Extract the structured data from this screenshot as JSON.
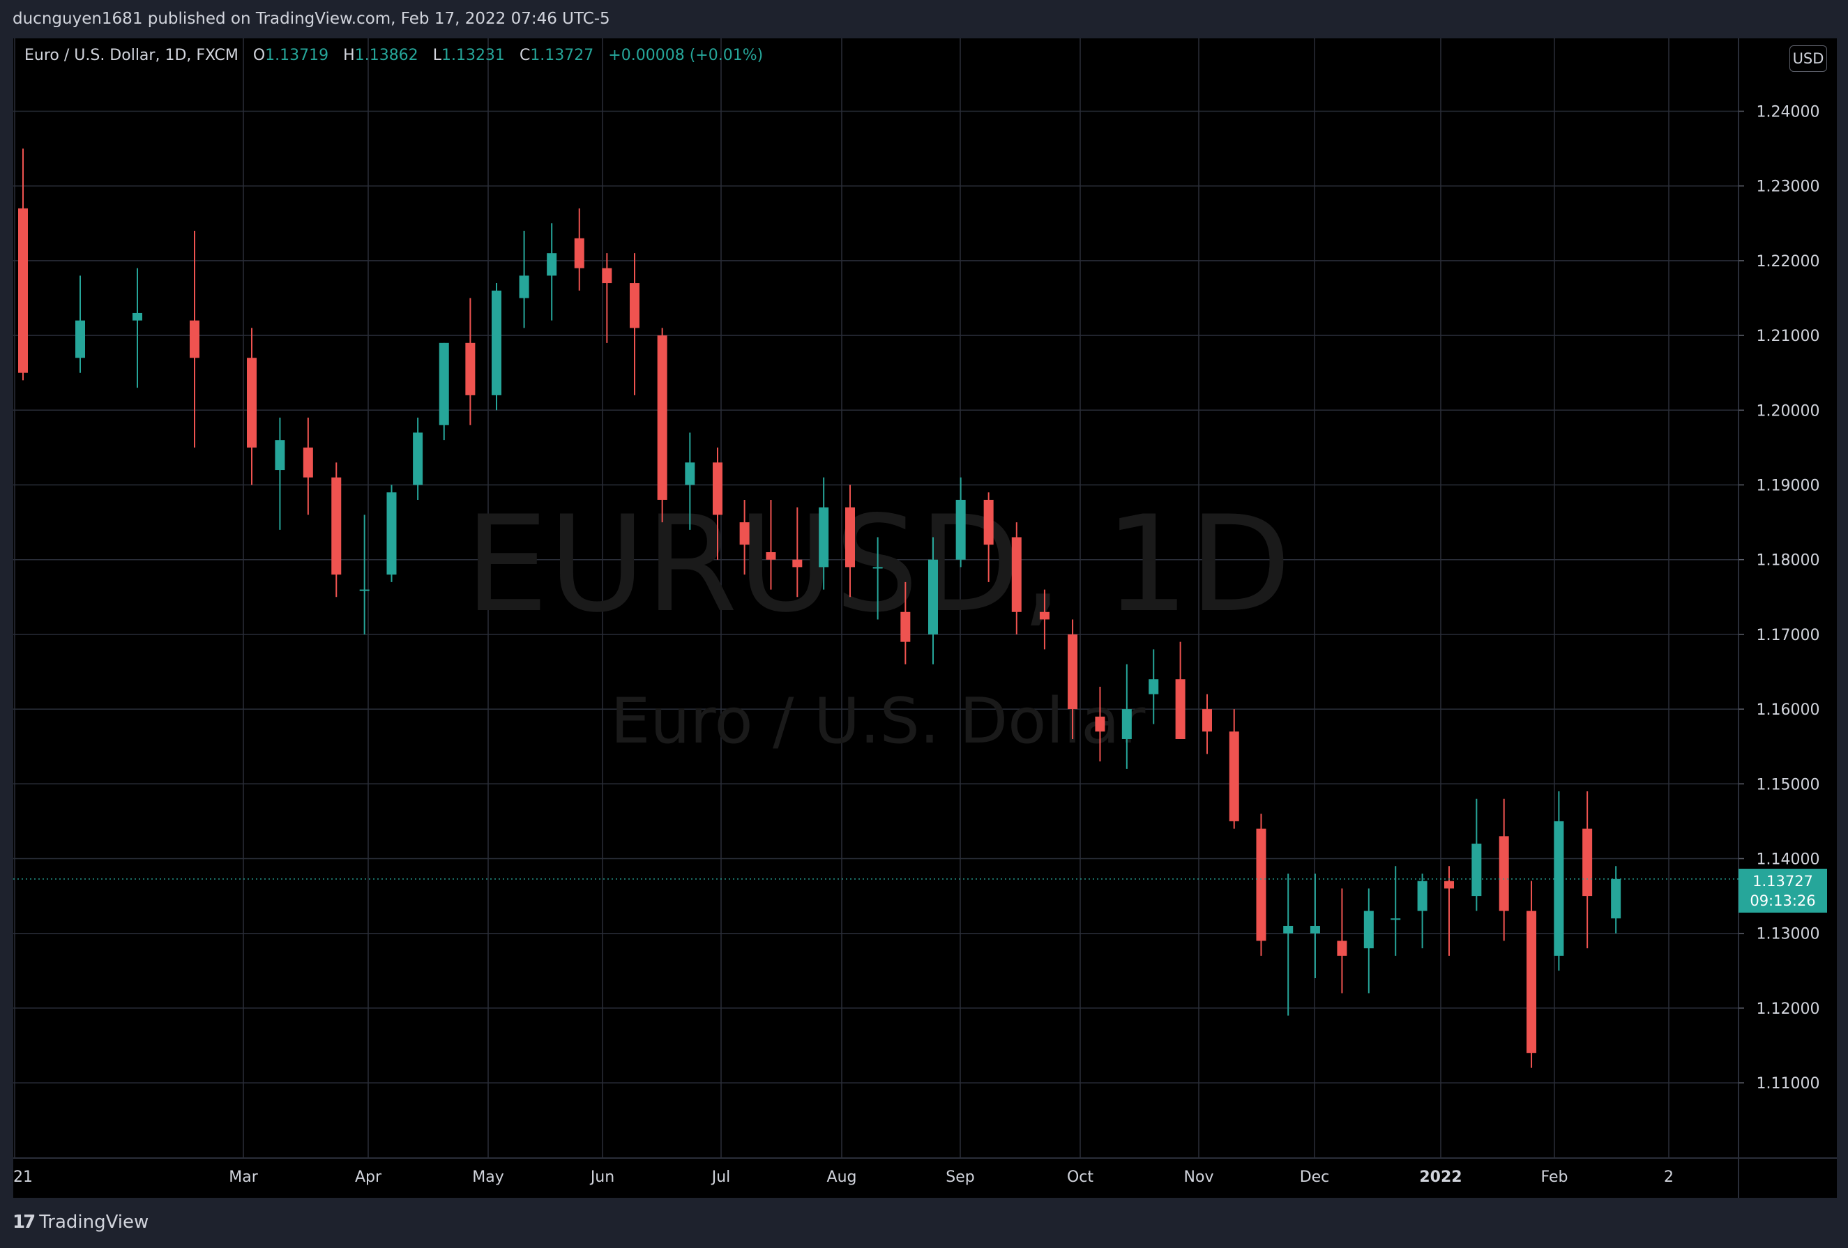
{
  "header": {
    "publisher_line": "ducnguyen1681 published on TradingView.com, Feb 17, 2022 07:46 UTC-5"
  },
  "legend": {
    "symbol": "Euro / U.S. Dollar, 1D, FXCM",
    "open_key": "O",
    "open": "1.13719",
    "high_key": "H",
    "high": "1.13862",
    "low_key": "L",
    "low": "1.13231",
    "close_key": "C",
    "close": "1.13727",
    "change": "+0.00008 (+0.01%)"
  },
  "currency_button": "USD",
  "watermark": {
    "ticker": "EURUSD, 1D",
    "name": "Euro / U.S. Dollar"
  },
  "last_price": {
    "value": "1.13727",
    "countdown": "09:13:26"
  },
  "footer": {
    "brand": "TradingView",
    "logo_icon": "tradingview-logo-icon"
  },
  "colors": {
    "up": "#26a69a",
    "down": "#ef5350",
    "background": "#000000",
    "grid": "#2a2e39",
    "frame": "#1e222d"
  },
  "chart_data": {
    "type": "candlestick",
    "title": "Euro / U.S. Dollar, 1D, FXCM",
    "ylim": [
      1.1,
      1.25
    ],
    "y_ticks": [
      "1.24000",
      "1.23000",
      "1.22000",
      "1.21000",
      "1.20000",
      "1.19000",
      "1.18000",
      "1.17000",
      "1.16000",
      "1.15000",
      "1.14000",
      "1.13000",
      "1.12000",
      "1.11000"
    ],
    "x_ticks": [
      "21",
      "Mar",
      "Apr",
      "May",
      "Jun",
      "Jul",
      "Aug",
      "Sep",
      "Oct",
      "Nov",
      "Dec",
      "2022",
      "Feb",
      "2"
    ],
    "x_tick_dates": [
      "2021-02-01",
      "2021-03-01",
      "2021-04-01",
      "2021-05-03",
      "2021-06-01",
      "2021-07-01",
      "2021-08-02",
      "2021-09-01",
      "2021-10-01",
      "2021-11-01",
      "2021-12-01",
      "2022-01-03",
      "2022-02-01",
      "2022-03-01"
    ],
    "grid": true,
    "last_price_line": 1.13727,
    "series": {
      "dates": [
        "2021-02-01",
        "2021-02-08",
        "2021-02-15",
        "2021-02-22",
        "2021-03-01",
        "2021-03-08",
        "2021-03-15",
        "2021-03-22",
        "2021-03-29",
        "2021-04-05",
        "2021-04-12",
        "2021-04-19",
        "2021-04-26",
        "2021-05-03",
        "2021-05-10",
        "2021-05-17",
        "2021-05-24",
        "2021-05-31",
        "2021-06-07",
        "2021-06-14",
        "2021-06-21",
        "2021-06-28",
        "2021-07-05",
        "2021-07-12",
        "2021-07-19",
        "2021-07-26",
        "2021-08-02",
        "2021-08-09",
        "2021-08-16",
        "2021-08-23",
        "2021-08-30",
        "2021-09-06",
        "2021-09-13",
        "2021-09-20",
        "2021-09-27",
        "2021-10-04",
        "2021-10-11",
        "2021-10-18",
        "2021-10-25",
        "2021-11-01",
        "2021-11-08",
        "2021-11-15",
        "2021-11-22",
        "2021-11-29",
        "2021-12-06",
        "2021-12-13",
        "2021-12-20",
        "2021-12-27",
        "2022-01-03",
        "2022-01-10",
        "2022-01-17",
        "2022-01-24",
        "2022-01-31",
        "2022-02-07",
        "2022-02-14"
      ],
      "open": [
        1.227,
        1.207,
        1.212,
        1.212,
        1.207,
        1.192,
        1.195,
        1.191,
        1.176,
        1.178,
        1.19,
        1.198,
        1.209,
        1.202,
        1.215,
        1.218,
        1.223,
        1.219,
        1.217,
        1.21,
        1.19,
        1.193,
        1.185,
        1.181,
        1.18,
        1.179,
        1.187,
        1.179,
        1.173,
        1.17,
        1.18,
        1.188,
        1.183,
        1.173,
        1.17,
        1.159,
        1.156,
        1.162,
        1.164,
        1.16,
        1.157,
        1.144,
        1.13,
        1.13,
        1.129,
        1.128,
        1.132,
        1.133,
        1.137,
        1.135,
        1.143,
        1.133,
        1.127,
        1.144,
        1.132
      ],
      "high": [
        1.235,
        1.218,
        1.219,
        1.224,
        1.211,
        1.199,
        1.199,
        1.193,
        1.186,
        1.19,
        1.199,
        1.209,
        1.215,
        1.217,
        1.224,
        1.225,
        1.227,
        1.221,
        1.221,
        1.211,
        1.197,
        1.195,
        1.188,
        1.188,
        1.187,
        1.191,
        1.19,
        1.183,
        1.177,
        1.183,
        1.191,
        1.189,
        1.185,
        1.176,
        1.172,
        1.163,
        1.166,
        1.168,
        1.169,
        1.162,
        1.16,
        1.146,
        1.138,
        1.138,
        1.136,
        1.136,
        1.139,
        1.138,
        1.139,
        1.148,
        1.148,
        1.137,
        1.149,
        1.149,
        1.139
      ],
      "low": [
        1.204,
        1.205,
        1.203,
        1.195,
        1.19,
        1.184,
        1.186,
        1.175,
        1.17,
        1.177,
        1.188,
        1.196,
        1.198,
        1.2,
        1.211,
        1.212,
        1.216,
        1.209,
        1.202,
        1.185,
        1.184,
        1.18,
        1.178,
        1.176,
        1.175,
        1.176,
        1.175,
        1.172,
        1.166,
        1.166,
        1.179,
        1.177,
        1.17,
        1.168,
        1.156,
        1.153,
        1.152,
        1.158,
        1.157,
        1.154,
        1.144,
        1.127,
        1.119,
        1.124,
        1.122,
        1.122,
        1.127,
        1.128,
        1.127,
        1.133,
        1.129,
        1.112,
        1.125,
        1.128,
        1.13
      ],
      "close": [
        1.205,
        1.212,
        1.213,
        1.207,
        1.195,
        1.196,
        1.191,
        1.178,
        1.176,
        1.189,
        1.197,
        1.209,
        1.202,
        1.216,
        1.218,
        1.221,
        1.219,
        1.217,
        1.211,
        1.188,
        1.193,
        1.186,
        1.182,
        1.18,
        1.179,
        1.187,
        1.179,
        1.179,
        1.169,
        1.18,
        1.188,
        1.182,
        1.173,
        1.172,
        1.16,
        1.157,
        1.16,
        1.164,
        1.156,
        1.157,
        1.145,
        1.129,
        1.131,
        1.131,
        1.127,
        1.133,
        1.132,
        1.137,
        1.136,
        1.142,
        1.133,
        1.114,
        1.145,
        1.135,
        1.13727
      ]
    }
  }
}
